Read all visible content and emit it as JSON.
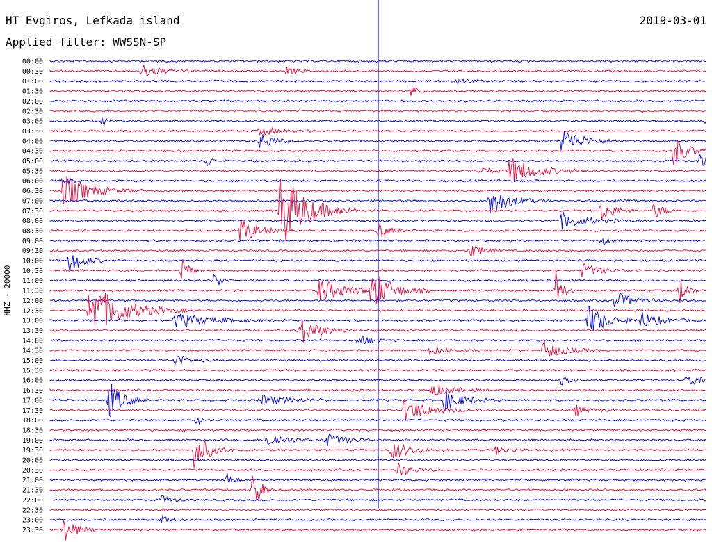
{
  "header": {
    "station": "HT Evgiros, Lefkada island",
    "filter": "Applied filter: WWSSN-SP",
    "date": "2019-03-01"
  },
  "chart_data": {
    "type": "line",
    "title": "HT Evgiros, Lefkada island",
    "subtitle": "Applied filter: WWSSN-SP",
    "ylabel": "HHZ - 20000",
    "xlabel": "",
    "date": "2019-03-01",
    "rows": [
      "00:00",
      "00:30",
      "01:00",
      "01:30",
      "02:00",
      "02:30",
      "03:00",
      "03:30",
      "04:00",
      "04:30",
      "05:00",
      "05:30",
      "06:00",
      "06:30",
      "07:00",
      "07:30",
      "08:00",
      "08:30",
      "09:00",
      "09:30",
      "10:00",
      "10:30",
      "11:00",
      "11:30",
      "12:00",
      "12:30",
      "13:00",
      "13:30",
      "14:00",
      "14:30",
      "15:00",
      "15:30",
      "16:00",
      "16:30",
      "17:00",
      "17:30",
      "18:00",
      "18:30",
      "19:00",
      "19:30",
      "20:00",
      "20:30",
      "21:00",
      "21:30",
      "22:00",
      "22:30",
      "23:00",
      "23:30"
    ],
    "colors": [
      "#1010e0",
      "#e81848"
    ],
    "events": [
      {
        "row": 1,
        "pos": 0.14,
        "amp": 10,
        "dur": 0.03
      },
      {
        "row": 1,
        "pos": 0.36,
        "amp": 5,
        "dur": 0.02
      },
      {
        "row": 2,
        "pos": 0.62,
        "amp": 5,
        "dur": 0.02
      },
      {
        "row": 3,
        "pos": 0.55,
        "amp": 10,
        "dur": 0.01
      },
      {
        "row": 6,
        "pos": 0.08,
        "amp": 8,
        "dur": 0.005
      },
      {
        "row": 6,
        "pos": 1.0,
        "amp": 6,
        "dur": 0.02
      },
      {
        "row": 7,
        "pos": 0.32,
        "amp": 6,
        "dur": 0.03
      },
      {
        "row": 8,
        "pos": 0.32,
        "amp": 14,
        "dur": 0.02
      },
      {
        "row": 8,
        "pos": 0.78,
        "amp": 20,
        "dur": 0.03
      },
      {
        "row": 9,
        "pos": 0.95,
        "amp": 24,
        "dur": 0.02
      },
      {
        "row": 10,
        "pos": 0.24,
        "amp": 12,
        "dur": 0.005
      },
      {
        "row": 10,
        "pos": 0.99,
        "amp": 10,
        "dur": 0.02
      },
      {
        "row": 11,
        "pos": 0.7,
        "amp": 20,
        "dur": 0.04
      },
      {
        "row": 11,
        "pos": 0.65,
        "amp": 8,
        "dur": 0.02
      },
      {
        "row": 12,
        "pos": 0.02,
        "amp": 10,
        "dur": 0.01
      },
      {
        "row": 13,
        "pos": 0.02,
        "amp": 24,
        "dur": 0.04
      },
      {
        "row": 14,
        "pos": 0.67,
        "amp": 22,
        "dur": 0.03
      },
      {
        "row": 15,
        "pos": 0.35,
        "amp": 60,
        "dur": 0.04
      },
      {
        "row": 15,
        "pos": 0.84,
        "amp": 16,
        "dur": 0.02
      },
      {
        "row": 15,
        "pos": 0.92,
        "amp": 12,
        "dur": 0.015
      },
      {
        "row": 16,
        "pos": 0.78,
        "amp": 12,
        "dur": 0.04
      },
      {
        "row": 17,
        "pos": 0.29,
        "amp": 18,
        "dur": 0.03
      },
      {
        "row": 17,
        "pos": 0.5,
        "amp": 10,
        "dur": 0.02
      },
      {
        "row": 18,
        "pos": 0.84,
        "amp": 8,
        "dur": 0.01
      },
      {
        "row": 19,
        "pos": 0.64,
        "amp": 10,
        "dur": 0.02
      },
      {
        "row": 20,
        "pos": 0.03,
        "amp": 18,
        "dur": 0.02
      },
      {
        "row": 21,
        "pos": 0.2,
        "amp": 24,
        "dur": 0.01
      },
      {
        "row": 21,
        "pos": 0.81,
        "amp": 10,
        "dur": 0.03
      },
      {
        "row": 22,
        "pos": 0.25,
        "amp": 14,
        "dur": 0.01
      },
      {
        "row": 23,
        "pos": 0.41,
        "amp": 18,
        "dur": 0.04
      },
      {
        "row": 23,
        "pos": 0.49,
        "amp": 30,
        "dur": 0.03
      },
      {
        "row": 23,
        "pos": 0.77,
        "amp": 32,
        "dur": 0.01
      },
      {
        "row": 23,
        "pos": 0.96,
        "amp": 22,
        "dur": 0.01
      },
      {
        "row": 24,
        "pos": 0.86,
        "amp": 12,
        "dur": 0.03
      },
      {
        "row": 25,
        "pos": 0.06,
        "amp": 40,
        "dur": 0.05
      },
      {
        "row": 26,
        "pos": 0.19,
        "amp": 10,
        "dur": 0.06
      },
      {
        "row": 26,
        "pos": 0.82,
        "amp": 22,
        "dur": 0.03
      },
      {
        "row": 26,
        "pos": 0.9,
        "amp": 12,
        "dur": 0.03
      },
      {
        "row": 27,
        "pos": 0.38,
        "amp": 20,
        "dur": 0.03
      },
      {
        "row": 28,
        "pos": 0.47,
        "amp": 8,
        "dur": 0.02
      },
      {
        "row": 29,
        "pos": 0.75,
        "amp": 14,
        "dur": 0.03
      },
      {
        "row": 29,
        "pos": 0.58,
        "amp": 8,
        "dur": 0.02
      },
      {
        "row": 30,
        "pos": 0.19,
        "amp": 10,
        "dur": 0.02
      },
      {
        "row": 32,
        "pos": 0.78,
        "amp": 18,
        "dur": 0.01
      },
      {
        "row": 32,
        "pos": 0.97,
        "amp": 10,
        "dur": 0.02
      },
      {
        "row": 33,
        "pos": 0.58,
        "amp": 10,
        "dur": 0.03
      },
      {
        "row": 34,
        "pos": 0.09,
        "amp": 28,
        "dur": 0.02
      },
      {
        "row": 34,
        "pos": 0.32,
        "amp": 8,
        "dur": 0.04
      },
      {
        "row": 34,
        "pos": 0.6,
        "amp": 16,
        "dur": 0.03
      },
      {
        "row": 35,
        "pos": 0.54,
        "amp": 16,
        "dur": 0.04
      },
      {
        "row": 35,
        "pos": 0.8,
        "amp": 8,
        "dur": 0.02
      },
      {
        "row": 36,
        "pos": 0.22,
        "amp": 8,
        "dur": 0.01
      },
      {
        "row": 38,
        "pos": 0.33,
        "amp": 10,
        "dur": 0.03
      },
      {
        "row": 38,
        "pos": 0.42,
        "amp": 10,
        "dur": 0.03
      },
      {
        "row": 39,
        "pos": 0.22,
        "amp": 30,
        "dur": 0.02
      },
      {
        "row": 39,
        "pos": 0.52,
        "amp": 14,
        "dur": 0.03
      },
      {
        "row": 39,
        "pos": 0.68,
        "amp": 6,
        "dur": 0.02
      },
      {
        "row": 41,
        "pos": 0.53,
        "amp": 10,
        "dur": 0.02
      },
      {
        "row": 42,
        "pos": 0.27,
        "amp": 8,
        "dur": 0.01
      },
      {
        "row": 43,
        "pos": 0.31,
        "amp": 40,
        "dur": 0.01
      },
      {
        "row": 44,
        "pos": 0.17,
        "amp": 6,
        "dur": 0.02
      },
      {
        "row": 46,
        "pos": 0.17,
        "amp": 8,
        "dur": 0.01
      },
      {
        "row": 47,
        "pos": 0.02,
        "amp": 18,
        "dur": 0.02
      }
    ],
    "spikes": [
      {
        "pos": 0.5,
        "top_row": 0,
        "bottom_row": 44
      }
    ]
  }
}
